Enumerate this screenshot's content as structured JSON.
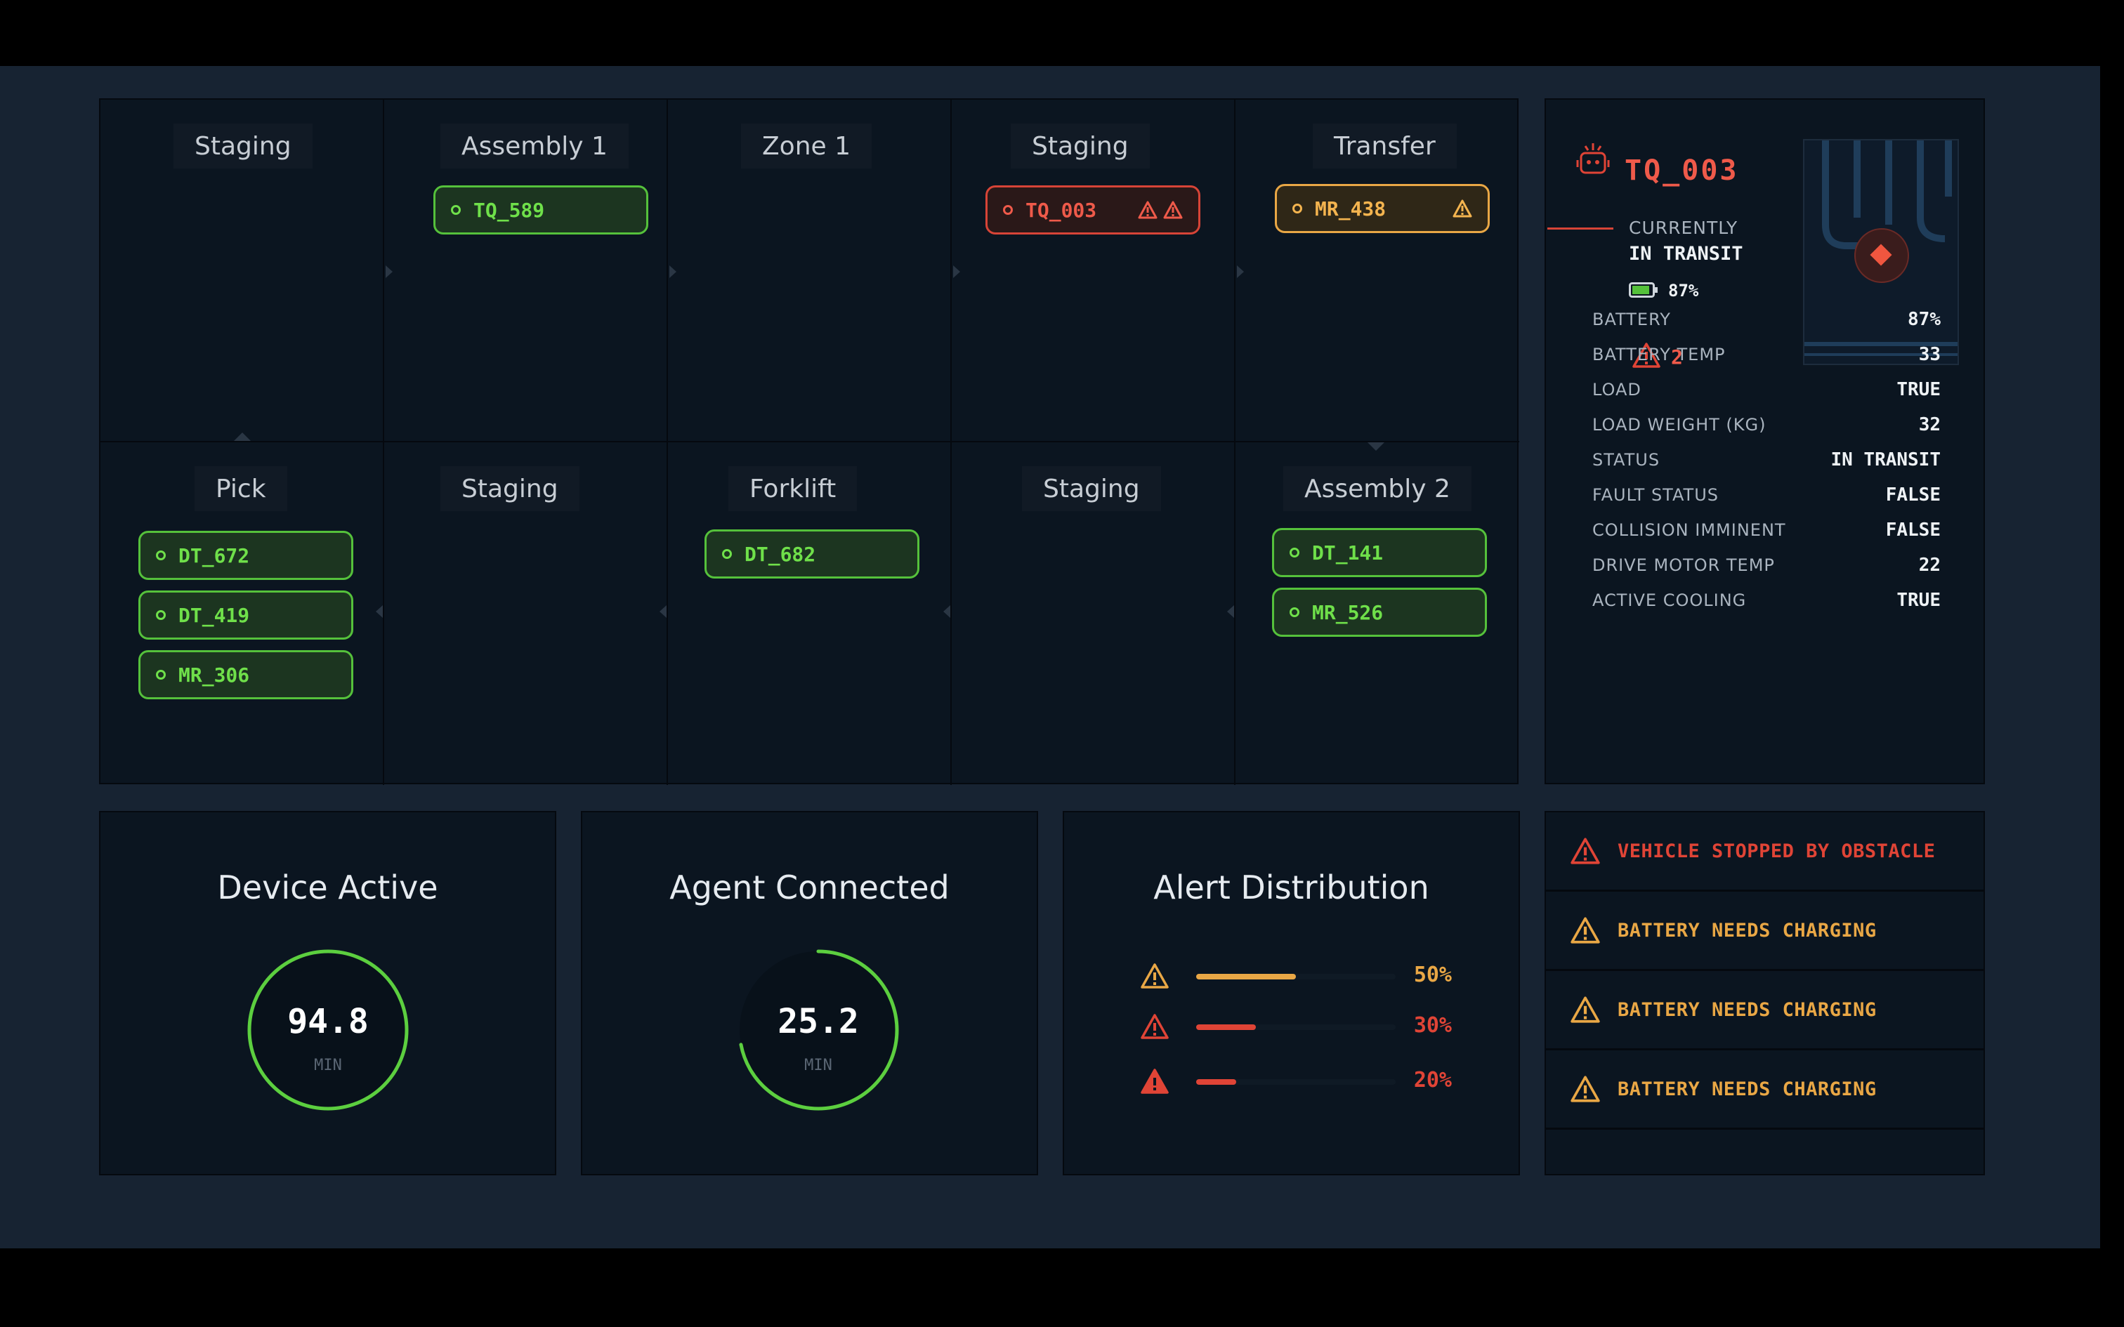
{
  "colors": {
    "green": "#55c13b",
    "red": "#e04436",
    "orange": "#e9a745",
    "panel": "#0b1520",
    "background": "#172332"
  },
  "grid": {
    "cells": [
      {
        "zone": "Staging"
      },
      {
        "zone": "Assembly 1"
      },
      {
        "zone": "Zone 1"
      },
      {
        "zone": "Staging"
      },
      {
        "zone": "Transfer"
      },
      {
        "zone": "Pick"
      },
      {
        "zone": "Staging"
      },
      {
        "zone": "Forklift"
      },
      {
        "zone": "Staging"
      },
      {
        "zone": "Assembly 2"
      }
    ],
    "robots": [
      {
        "id": "TQ_589",
        "status": "green"
      },
      {
        "id": "TQ_003",
        "status": "red",
        "warnings": 2
      },
      {
        "id": "MR_438",
        "status": "orange",
        "warnings": 1
      },
      {
        "id": "DT_672",
        "status": "green"
      },
      {
        "id": "DT_419",
        "status": "green"
      },
      {
        "id": "MR_306",
        "status": "green"
      },
      {
        "id": "DT_682",
        "status": "green"
      },
      {
        "id": "DT_141",
        "status": "green"
      },
      {
        "id": "MR_526",
        "status": "green"
      }
    ]
  },
  "detail": {
    "robot_icon": "robot-icon",
    "robot_id": "TQ_003",
    "currently_label": "CURRENTLY",
    "current_state": "IN TRANSIT",
    "battery_icon": "battery-icon",
    "battery": "87%",
    "warning_icon": "warning-icon",
    "alert_count": "2",
    "stats": [
      {
        "label": "BATTERY",
        "value": "87%"
      },
      {
        "label": "BATTERY TEMP",
        "value": "33"
      },
      {
        "label": "LOAD",
        "value": "TRUE"
      },
      {
        "label": "LOAD WEIGHT (KG)",
        "value": "32"
      },
      {
        "label": "STATUS",
        "value": "IN TRANSIT"
      },
      {
        "label": "FAULT STATUS",
        "value": "FALSE"
      },
      {
        "label": "COLLISION IMMINENT",
        "value": "FALSE"
      },
      {
        "label": "DRIVE MOTOR TEMP",
        "value": "22"
      },
      {
        "label": "ACTIVE COOLING",
        "value": "TRUE"
      }
    ]
  },
  "cards": {
    "device": {
      "title": "Device Active",
      "value": "94.8",
      "unit": "MIN",
      "progress": 1.0
    },
    "agent": {
      "title": "Agent Connected",
      "value": "25.2",
      "unit": "MIN",
      "progress": 0.72
    },
    "distribution": {
      "title": "Alert Distribution",
      "rows": [
        {
          "pct": "50%",
          "fraction": 0.5,
          "color": "#e9a745"
        },
        {
          "pct": "30%",
          "fraction": 0.3,
          "color": "#e04436"
        },
        {
          "pct": "20%",
          "fraction": 0.2,
          "color": "#e04436"
        }
      ]
    }
  },
  "alerts": [
    {
      "text": "VEHICLE STOPPED BY OBSTACLE",
      "level": "red"
    },
    {
      "text": "BATTERY NEEDS CHARGING",
      "level": "orange"
    },
    {
      "text": "BATTERY NEEDS CHARGING",
      "level": "orange"
    },
    {
      "text": "BATTERY NEEDS CHARGING",
      "level": "orange"
    }
  ]
}
